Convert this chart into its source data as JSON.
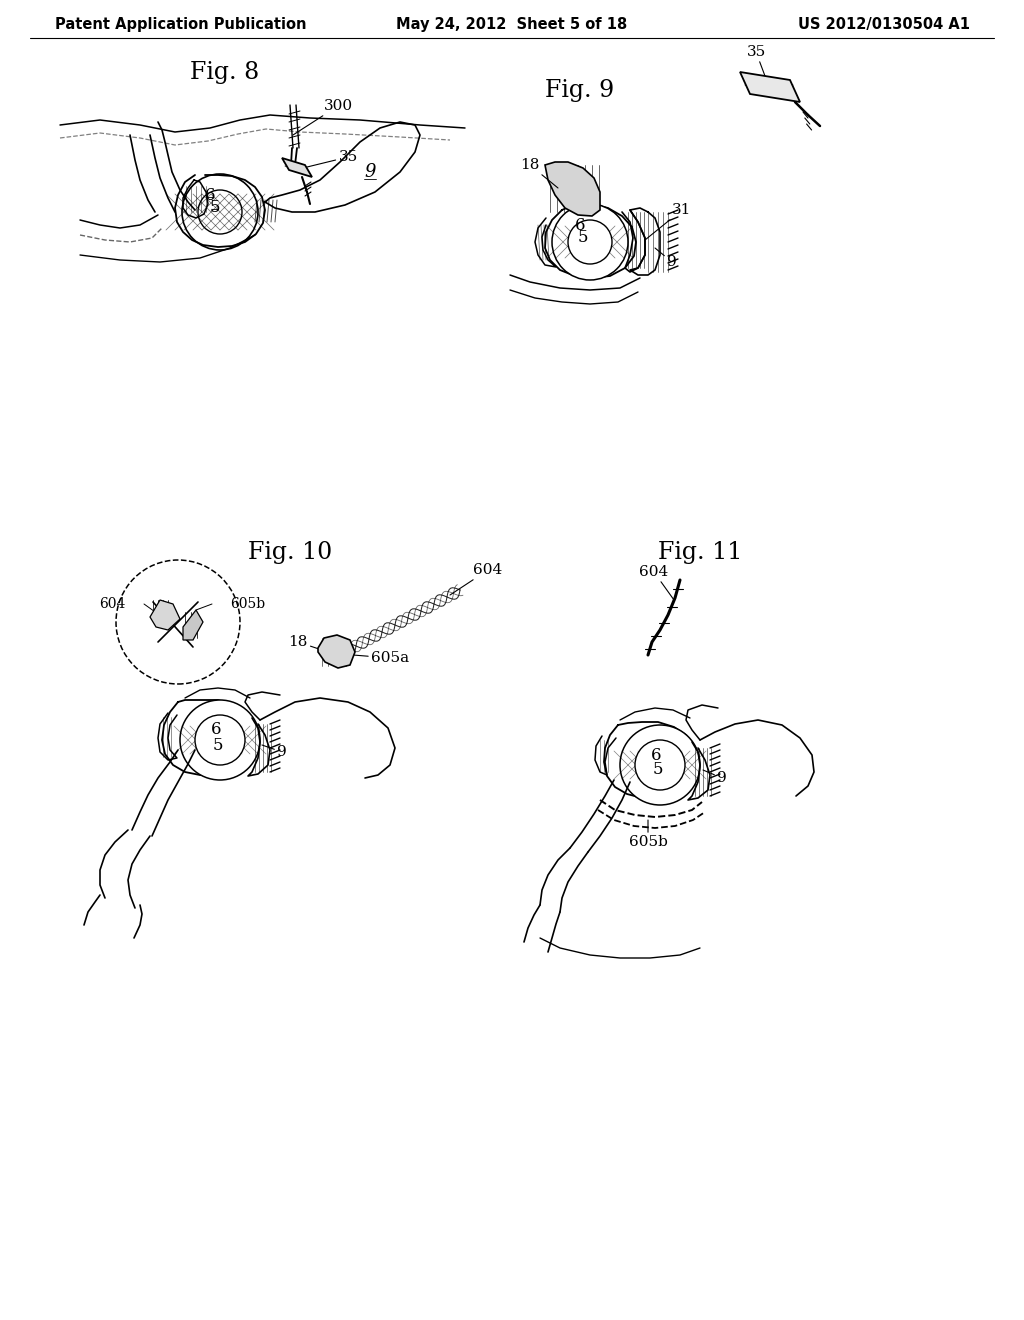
{
  "background_color": "#ffffff",
  "header_left": "Patent Application Publication",
  "header_center": "May 24, 2012  Sheet 5 of 18",
  "header_right": "US 2012/0130504 A1",
  "header_font_size": 10.5,
  "fig8_title": "Fig. 8",
  "fig9_title": "Fig. 9",
  "fig10_title": "Fig. 10",
  "fig11_title": "Fig. 11",
  "fig_title_fontsize": 17,
  "label_fontsize": 11,
  "line_color": "#000000",
  "line_width": 1.2,
  "text_color": "#000000",
  "hatch_color": "#888888"
}
